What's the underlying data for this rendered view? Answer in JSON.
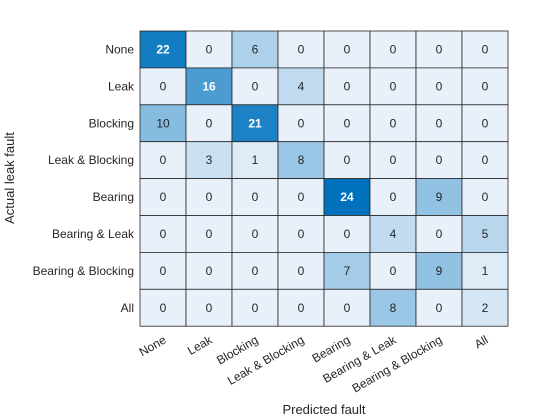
{
  "chart_data": {
    "type": "heatmap",
    "title": "",
    "xlabel": "Predicted fault",
    "ylabel": "Actual leak fault",
    "x_categories": [
      "None",
      "Leak",
      "Blocking",
      "Leak & Blocking",
      "Bearing",
      "Bearing & Leak",
      "Bearing & Blocking",
      "All"
    ],
    "y_categories": [
      "None",
      "Leak",
      "Blocking",
      "Leak & Blocking",
      "Bearing",
      "Bearing & Leak",
      "Bearing & Blocking",
      "All"
    ],
    "values": [
      [
        22,
        0,
        6,
        0,
        0,
        0,
        0,
        0
      ],
      [
        0,
        16,
        0,
        4,
        0,
        0,
        0,
        0
      ],
      [
        10,
        0,
        21,
        0,
        0,
        0,
        0,
        0
      ],
      [
        0,
        3,
        1,
        8,
        0,
        0,
        0,
        0
      ],
      [
        0,
        0,
        0,
        0,
        24,
        0,
        9,
        0
      ],
      [
        0,
        0,
        0,
        0,
        0,
        4,
        0,
        5
      ],
      [
        0,
        0,
        0,
        0,
        7,
        0,
        9,
        1
      ],
      [
        0,
        0,
        0,
        0,
        0,
        8,
        0,
        2
      ]
    ],
    "colormap": {
      "low": "#e8f1fa",
      "high": "#0072bd",
      "text_dark": "#262626",
      "text_light": "#ffffff",
      "grid": "#262626"
    }
  }
}
